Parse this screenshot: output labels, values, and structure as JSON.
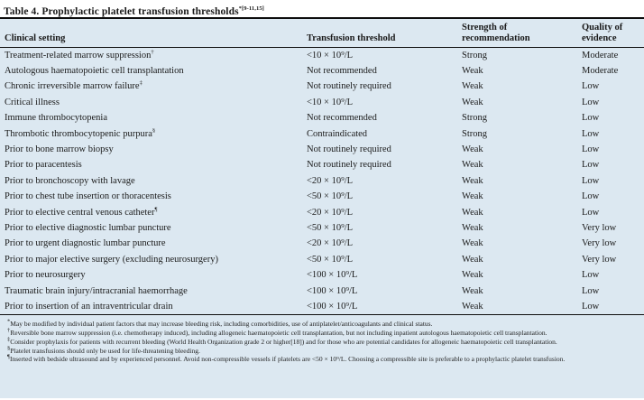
{
  "title": {
    "text": "Table 4. Prophylactic platelet transfusion thresholds",
    "superscript": "*[9-11,15]"
  },
  "colors": {
    "table_background": "#dce8f1",
    "title_background": "#ffffff",
    "rule": "#0d0d0d",
    "text": "#1a1a1a"
  },
  "table": {
    "columns": [
      {
        "line1": "",
        "line2": "Clinical setting"
      },
      {
        "line1": "",
        "line2": "Transfusion threshold"
      },
      {
        "line1": "Strength of",
        "line2": "recommendation"
      },
      {
        "line1": "Quality of",
        "line2": "evidence"
      }
    ],
    "rows": [
      {
        "setting": "Treatment-related marrow suppression",
        "marker": "†",
        "threshold": "<10 × 10⁹/L",
        "strength": "Strong",
        "quality": "Moderate"
      },
      {
        "setting": "Autologous haematopoietic cell transplantation",
        "marker": "",
        "threshold": "Not recommended",
        "strength": "Weak",
        "quality": "Moderate"
      },
      {
        "setting": "Chronic irreversible marrow failure",
        "marker": "‡",
        "threshold": "Not routinely required",
        "strength": "Weak",
        "quality": "Low"
      },
      {
        "setting": "Critical illness",
        "marker": "",
        "threshold": "<10 × 10⁹/L",
        "strength": "Weak",
        "quality": "Low"
      },
      {
        "setting": "Immune thrombocytopenia",
        "marker": "",
        "threshold": "Not recommended",
        "strength": "Strong",
        "quality": "Low"
      },
      {
        "setting": "Thrombotic thrombocytopenic purpura",
        "marker": "§",
        "threshold": "Contraindicated",
        "strength": "Strong",
        "quality": "Low"
      },
      {
        "setting": "Prior to bone marrow biopsy",
        "marker": "",
        "threshold": "Not routinely required",
        "strength": "Weak",
        "quality": "Low"
      },
      {
        "setting": "Prior to paracentesis",
        "marker": "",
        "threshold": "Not routinely required",
        "strength": "Weak",
        "quality": "Low"
      },
      {
        "setting": "Prior to bronchoscopy with lavage",
        "marker": "",
        "threshold": "<20 × 10⁹/L",
        "strength": "Weak",
        "quality": "Low"
      },
      {
        "setting": "Prior to chest tube insertion or thoracentesis",
        "marker": "",
        "threshold": "<50 × 10⁹/L",
        "strength": "Weak",
        "quality": "Low"
      },
      {
        "setting": "Prior to elective central venous catheter",
        "marker": "¶",
        "threshold": "<20 × 10⁹/L",
        "strength": "Weak",
        "quality": "Low"
      },
      {
        "setting": "Prior to elective diagnostic lumbar puncture",
        "marker": "",
        "threshold": "<50 × 10⁹/L",
        "strength": "Weak",
        "quality": "Very low"
      },
      {
        "setting": "Prior to urgent diagnostic lumbar puncture",
        "marker": "",
        "threshold": "<20 × 10⁹/L",
        "strength": "Weak",
        "quality": "Very low"
      },
      {
        "setting": "Prior to major elective surgery (excluding neurosurgery)",
        "marker": "",
        "threshold": "<50 × 10⁹/L",
        "strength": "Weak",
        "quality": "Very low"
      },
      {
        "setting": "Prior to neurosurgery",
        "marker": "",
        "threshold": "<100 × 10⁹/L",
        "strength": "Weak",
        "quality": "Low"
      },
      {
        "setting": "Traumatic brain injury/intracranial haemorrhage",
        "marker": "",
        "threshold": "<100 × 10⁹/L",
        "strength": "Weak",
        "quality": "Low"
      },
      {
        "setting": "Prior to insertion of an intraventricular drain",
        "marker": "",
        "threshold": "<100 × 10⁹/L",
        "strength": "Weak",
        "quality": "Low"
      }
    ]
  },
  "footnotes": [
    {
      "marker": "*",
      "text": "May be modified by individual patient factors that may increase bleeding risk, including comorbidities, use of antiplatelet/anticoagulants and clinical status."
    },
    {
      "marker": "†",
      "text": "Reversible bone marrow suppression (i.e. chemotherapy induced), including allogeneic haematopoietic cell transplantation, but not including inpatient autologous haematopoietic cell transplantation."
    },
    {
      "marker": "‡",
      "text": "Consider prophylaxis for patients with recurrent bleeding (World Health Organization grade 2 or higher[18]) and for those who are potential candidates for allogeneic haematopoietic cell transplantation."
    },
    {
      "marker": "§",
      "text": "Platelet transfusions should only be used for life-threatening bleeding."
    },
    {
      "marker": "¶",
      "text": "Inserted with bedside ultrasound and by experienced personnel. Avoid non-compressible vessels if platelets are <50 × 10⁹/L. Choosing a compressible site is preferable to a prophylactic platelet transfusion."
    }
  ]
}
